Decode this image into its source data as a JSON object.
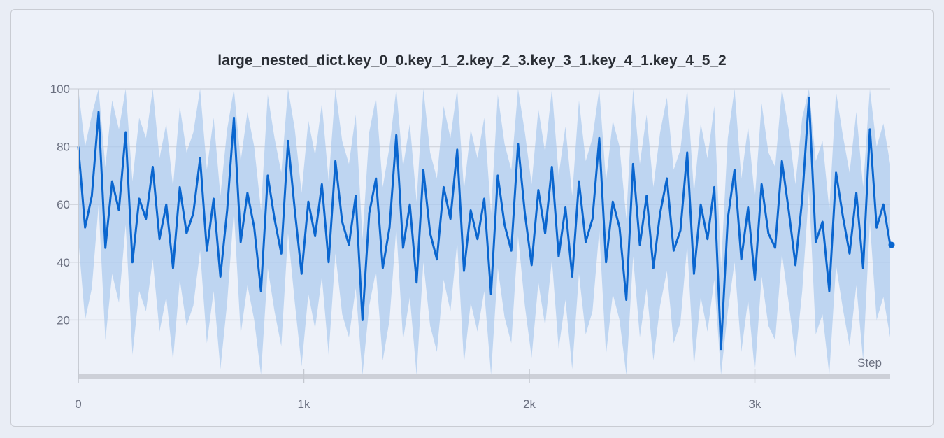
{
  "chart_data": {
    "type": "line",
    "title": "large_nested_dict.key_0_0.key_1_2.key_2_3.key_3_1.key_4_1.key_4_5_2",
    "xlabel": "Step",
    "ylabel": "",
    "xlim": [
      0,
      3600
    ],
    "ylim": [
      0,
      100
    ],
    "x_ticks": [
      {
        "value": 0,
        "label": "0"
      },
      {
        "value": 1000,
        "label": "1k"
      },
      {
        "value": 2000,
        "label": "2k"
      },
      {
        "value": 3000,
        "label": "3k"
      }
    ],
    "y_ticks": [
      {
        "value": 20,
        "label": "20"
      },
      {
        "value": 40,
        "label": "40"
      },
      {
        "value": 60,
        "label": "60"
      },
      {
        "value": 80,
        "label": "80"
      },
      {
        "value": 100,
        "label": "100"
      }
    ],
    "grid": true,
    "colors": {
      "line": "#0a66cf",
      "band": "#a9c9ee"
    },
    "x": [
      0,
      30,
      60,
      90,
      120,
      150,
      180,
      210,
      240,
      270,
      300,
      330,
      360,
      390,
      420,
      450,
      480,
      510,
      540,
      570,
      600,
      630,
      660,
      690,
      720,
      750,
      780,
      810,
      840,
      870,
      900,
      930,
      960,
      990,
      1020,
      1050,
      1080,
      1110,
      1140,
      1170,
      1200,
      1230,
      1260,
      1290,
      1320,
      1350,
      1380,
      1410,
      1440,
      1470,
      1500,
      1530,
      1560,
      1590,
      1620,
      1650,
      1680,
      1710,
      1740,
      1770,
      1800,
      1830,
      1860,
      1890,
      1920,
      1950,
      1980,
      2010,
      2040,
      2070,
      2100,
      2130,
      2160,
      2190,
      2220,
      2250,
      2280,
      2310,
      2340,
      2370,
      2400,
      2430,
      2460,
      2490,
      2520,
      2550,
      2580,
      2610,
      2640,
      2670,
      2700,
      2730,
      2760,
      2790,
      2820,
      2850,
      2880,
      2910,
      2940,
      2970,
      3000,
      3030,
      3060,
      3090,
      3120,
      3150,
      3180,
      3210,
      3240,
      3270,
      3300,
      3330,
      3360,
      3390,
      3420,
      3450,
      3480,
      3510,
      3540,
      3570,
      3600
    ],
    "y": [
      80,
      52,
      63,
      92,
      45,
      68,
      58,
      85,
      40,
      62,
      55,
      73,
      48,
      60,
      38,
      66,
      50,
      57,
      76,
      44,
      62,
      35,
      58,
      90,
      47,
      64,
      52,
      30,
      70,
      55,
      43,
      82,
      58,
      36,
      61,
      49,
      67,
      40,
      75,
      54,
      46,
      63,
      20,
      57,
      69,
      38,
      52,
      84,
      45,
      60,
      33,
      72,
      50,
      41,
      66,
      55,
      79,
      37,
      58,
      48,
      62,
      29,
      70,
      53,
      44,
      81,
      57,
      39,
      65,
      50,
      73,
      42,
      59,
      35,
      68,
      47,
      55,
      83,
      40,
      61,
      52,
      27,
      74,
      46,
      63,
      38,
      57,
      69,
      44,
      51,
      78,
      36,
      60,
      48,
      66,
      10,
      55,
      72,
      41,
      59,
      34,
      67,
      50,
      45,
      75,
      58,
      39,
      62,
      97,
      47,
      54,
      30,
      71,
      56,
      43,
      64,
      38,
      86,
      52,
      60,
      46
    ],
    "band_max": [
      100,
      80,
      91,
      100,
      73,
      96,
      86,
      100,
      68,
      90,
      83,
      100,
      76,
      88,
      66,
      94,
      78,
      85,
      100,
      72,
      90,
      63,
      86,
      100,
      75,
      92,
      80,
      58,
      98,
      83,
      71,
      100,
      86,
      64,
      89,
      77,
      95,
      68,
      100,
      82,
      74,
      91,
      48,
      85,
      97,
      66,
      80,
      100,
      73,
      88,
      61,
      100,
      78,
      69,
      94,
      83,
      100,
      65,
      86,
      76,
      90,
      57,
      98,
      81,
      72,
      100,
      85,
      67,
      93,
      78,
      100,
      70,
      87,
      63,
      96,
      75,
      83,
      100,
      68,
      89,
      80,
      55,
      100,
      74,
      91,
      66,
      85,
      97,
      72,
      79,
      100,
      64,
      88,
      76,
      94,
      38,
      83,
      100,
      69,
      87,
      62,
      95,
      78,
      73,
      100,
      86,
      67,
      90,
      100,
      75,
      82,
      58,
      99,
      84,
      71,
      92,
      66,
      100,
      80,
      88,
      74
    ],
    "band_min": [
      48,
      20,
      31,
      60,
      13,
      36,
      26,
      53,
      8,
      30,
      23,
      41,
      16,
      28,
      6,
      34,
      18,
      25,
      44,
      12,
      30,
      3,
      26,
      58,
      15,
      32,
      20,
      1,
      38,
      23,
      11,
      50,
      26,
      4,
      29,
      17,
      35,
      8,
      43,
      22,
      14,
      31,
      1,
      25,
      37,
      6,
      20,
      52,
      13,
      28,
      1,
      40,
      18,
      9,
      34,
      23,
      47,
      5,
      26,
      16,
      30,
      1,
      38,
      21,
      12,
      49,
      25,
      7,
      33,
      18,
      41,
      10,
      27,
      3,
      36,
      15,
      23,
      51,
      8,
      29,
      20,
      1,
      42,
      14,
      31,
      6,
      25,
      37,
      12,
      19,
      46,
      4,
      28,
      16,
      34,
      1,
      23,
      40,
      9,
      27,
      2,
      35,
      18,
      13,
      43,
      26,
      7,
      30,
      65,
      15,
      22,
      1,
      39,
      24,
      11,
      32,
      6,
      54,
      20,
      28,
      14
    ]
  }
}
